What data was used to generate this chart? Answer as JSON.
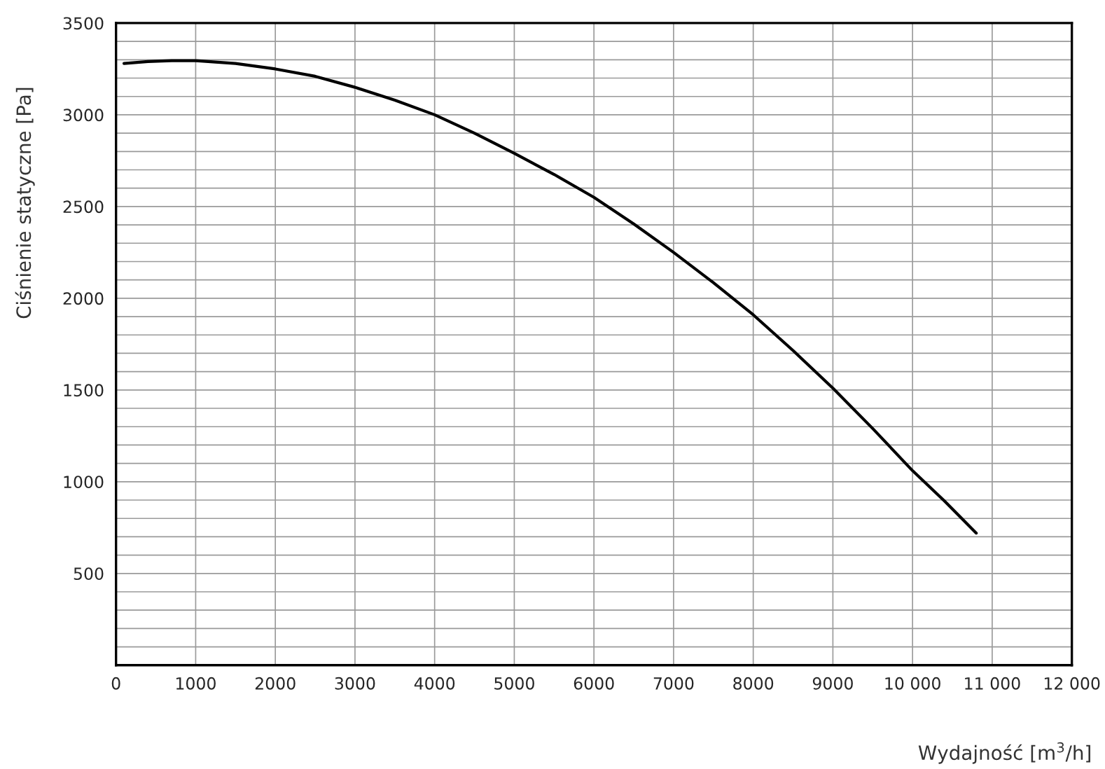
{
  "chart_data": {
    "type": "line",
    "xlabel": "Wydajność [m$^{3}$/h]",
    "ylabel": "Ciśnienie statyczne [Pa]",
    "x": [
      100,
      400,
      700,
      1000,
      1500,
      2000,
      2500,
      3000,
      3500,
      4000,
      4500,
      5000,
      5500,
      6000,
      6500,
      7000,
      7500,
      8000,
      8500,
      9000,
      9500,
      10000,
      10400,
      10800
    ],
    "series": [
      {
        "color": "#000000",
        "values": [
          3280,
          3290,
          3295,
          3295,
          3280,
          3250,
          3210,
          3150,
          3080,
          3000,
          2900,
          2790,
          2675,
          2550,
          2405,
          2250,
          2085,
          1910,
          1715,
          1510,
          1290,
          1060,
          895,
          720
        ]
      }
    ],
    "xlim": [
      0,
      12000
    ],
    "ylim": [
      0,
      3500
    ],
    "xticks": [
      0,
      1000,
      2000,
      3000,
      4000,
      5000,
      6000,
      7000,
      8000,
      9000,
      {
        "value": 10000,
        "label": "10 000"
      },
      {
        "value": 11000,
        "label": "11 000"
      },
      {
        "value": 12000,
        "label": "12 000"
      }
    ],
    "yticks": [
      {
        "value": 0,
        "label": null
      },
      {
        "value": 100,
        "label": null
      },
      {
        "value": 200,
        "label": null
      },
      {
        "value": 300,
        "label": null
      },
      {
        "value": 400,
        "label": null
      },
      500,
      {
        "value": 600,
        "label": null
      },
      {
        "value": 700,
        "label": null
      },
      {
        "value": 800,
        "label": null
      },
      {
        "value": 900,
        "label": null
      },
      1000,
      {
        "value": 1100,
        "label": null
      },
      {
        "value": 1200,
        "label": null
      },
      {
        "value": 1300,
        "label": null
      },
      {
        "value": 1400,
        "label": null
      },
      1500,
      {
        "value": 1600,
        "label": null
      },
      {
        "value": 1700,
        "label": null
      },
      {
        "value": 1800,
        "label": null
      },
      {
        "value": 1900,
        "label": null
      },
      2000,
      {
        "value": 2100,
        "label": null
      },
      {
        "value": 2200,
        "label": null
      },
      {
        "value": 2300,
        "label": null
      },
      {
        "value": 2400,
        "label": null
      },
      2500,
      {
        "value": 2600,
        "label": null
      },
      {
        "value": 2700,
        "label": null
      },
      {
        "value": 2800,
        "label": null
      },
      {
        "value": 2900,
        "label": null
      },
      3000,
      {
        "value": 3100,
        "label": null
      },
      {
        "value": 3200,
        "label": null
      },
      {
        "value": 3300,
        "label": null
      },
      {
        "value": 3400,
        "label": null
      },
      3500
    ],
    "grid": true,
    "marker": "none",
    "line_style": "solid",
    "legend": false
  }
}
